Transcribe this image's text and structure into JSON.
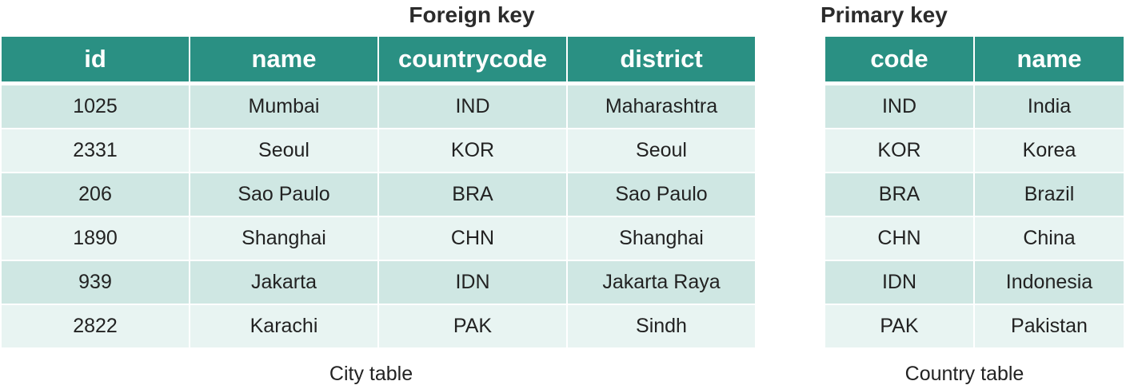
{
  "city_table": {
    "key_label": "Foreign key",
    "caption": "City table",
    "headers": [
      "id",
      "name",
      "countrycode",
      "district"
    ],
    "rows": [
      [
        "1025",
        "Mumbai",
        "IND",
        "Maharashtra"
      ],
      [
        "2331",
        "Seoul",
        "KOR",
        "Seoul"
      ],
      [
        "206",
        "Sao Paulo",
        "BRA",
        "Sao Paulo"
      ],
      [
        "1890",
        "Shanghai",
        "CHN",
        "Shanghai"
      ],
      [
        "939",
        "Jakarta",
        "IDN",
        "Jakarta Raya"
      ],
      [
        "2822",
        "Karachi",
        "PAK",
        "Sindh"
      ]
    ]
  },
  "country_table": {
    "key_label": "Primary key",
    "caption": "Country table",
    "headers": [
      "code",
      "name"
    ],
    "rows": [
      [
        "IND",
        "India"
      ],
      [
        "KOR",
        "Korea"
      ],
      [
        "BRA",
        "Brazil"
      ],
      [
        "CHN",
        "China"
      ],
      [
        "IDN",
        "Indonesia"
      ],
      [
        "PAK",
        "Pakistan"
      ]
    ]
  },
  "colors": {
    "header_bg": "#2a9083",
    "row_odd_bg": "#cfe7e3",
    "row_even_bg": "#e8f4f2"
  }
}
